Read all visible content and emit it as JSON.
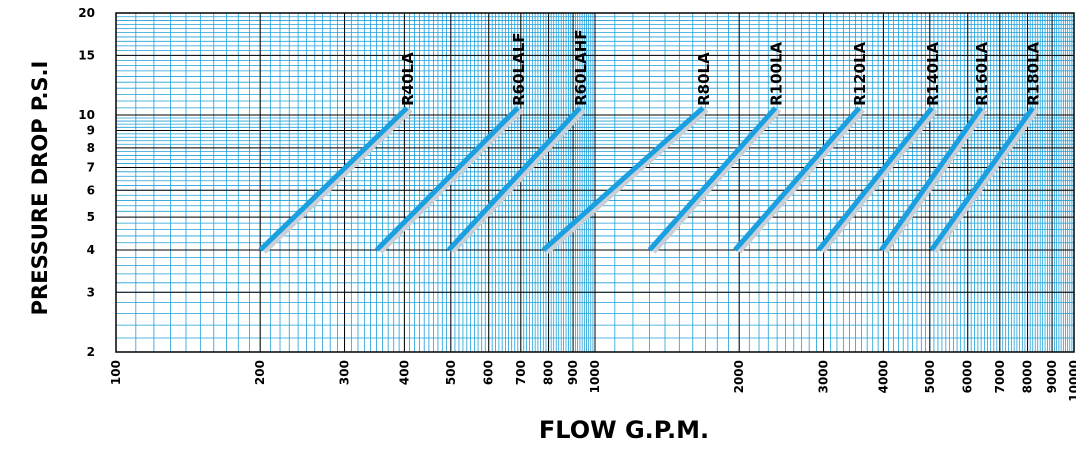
{
  "chart_data": {
    "type": "line",
    "xlabel": "FLOW G.P.M.",
    "ylabel": "PRESSURE DROP P.S.I",
    "x_scale": "log",
    "y_scale": "log",
    "xlim": [
      100,
      10000
    ],
    "ylim": [
      2,
      20
    ],
    "grid": true,
    "x_ticks": [
      {
        "value": 100,
        "label": "100"
      },
      {
        "value": 200,
        "label": "200"
      },
      {
        "value": 300,
        "label": "300"
      },
      {
        "value": 400,
        "label": "400"
      },
      {
        "value": 500,
        "label": "500"
      },
      {
        "value": 600,
        "label": "600"
      },
      {
        "value": 700,
        "label": "700"
      },
      {
        "value": 800,
        "label": "800"
      },
      {
        "value": 900,
        "label": "900"
      },
      {
        "value": 1000,
        "label": "1000"
      },
      {
        "value": 2000,
        "label": "2000"
      },
      {
        "value": 3000,
        "label": "3000"
      },
      {
        "value": 4000,
        "label": "4000"
      },
      {
        "value": 5000,
        "label": "5000"
      },
      {
        "value": 6000,
        "label": "6000"
      },
      {
        "value": 7000,
        "label": "7000"
      },
      {
        "value": 8000,
        "label": "8000"
      },
      {
        "value": 9000,
        "label": "9000"
      },
      {
        "value": 10000,
        "label": "10000"
      }
    ],
    "y_ticks": [
      {
        "value": 2,
        "label": "2"
      },
      {
        "value": 3,
        "label": "3"
      },
      {
        "value": 4,
        "label": "4"
      },
      {
        "value": 5,
        "label": "5"
      },
      {
        "value": 6,
        "label": "6"
      },
      {
        "value": 7,
        "label": "7"
      },
      {
        "value": 8,
        "label": "8"
      },
      {
        "value": 9,
        "label": "9"
      },
      {
        "value": 10,
        "label": "10"
      },
      {
        "value": 15,
        "label": "15"
      },
      {
        "value": 20,
        "label": "20"
      }
    ],
    "series": [
      {
        "name": "R40LA",
        "x": [
          200,
          405
        ],
        "y": [
          4,
          10.5
        ]
      },
      {
        "name": "R60LALF",
        "x": [
          350,
          690
        ],
        "y": [
          4,
          10.5
        ]
      },
      {
        "name": "R60LAHF",
        "x": [
          495,
          930
        ],
        "y": [
          4,
          10.5
        ]
      },
      {
        "name": "R80LA",
        "x": [
          780,
          1680
        ],
        "y": [
          4,
          10.5
        ]
      },
      {
        "name": "R100LA",
        "x": [
          1300,
          2380
        ],
        "y": [
          4,
          10.5
        ]
      },
      {
        "name": "R120LA",
        "x": [
          1960,
          3560
        ],
        "y": [
          4,
          10.5
        ]
      },
      {
        "name": "R140LA",
        "x": [
          2930,
          5050
        ],
        "y": [
          4,
          10.5
        ]
      },
      {
        "name": "R160LA",
        "x": [
          3960,
          6400
        ],
        "y": [
          4,
          10.5
        ]
      },
      {
        "name": "R180LA",
        "x": [
          5040,
          8200
        ],
        "y": [
          4,
          10.5
        ]
      }
    ],
    "colors": {
      "grid": "#1e9fd8",
      "grid_major": "#000000",
      "line": "#1a9fe0",
      "shadow": "#c9cfd6"
    }
  }
}
